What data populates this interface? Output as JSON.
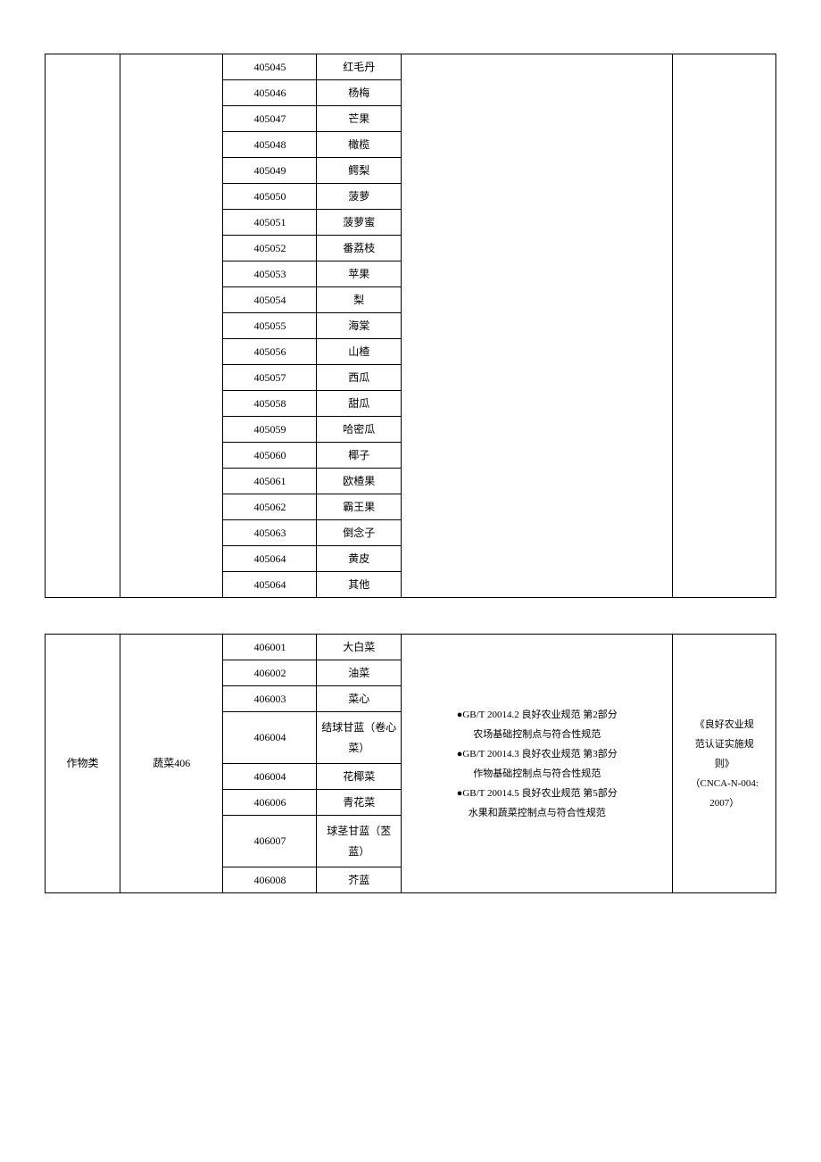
{
  "table1": {
    "rows": [
      {
        "code": "405045",
        "name": "红毛丹"
      },
      {
        "code": "405046",
        "name": "杨梅"
      },
      {
        "code": "405047",
        "name": "芒果"
      },
      {
        "code": "405048",
        "name": "橄榄"
      },
      {
        "code": "405049",
        "name": "鳄梨"
      },
      {
        "code": "405050",
        "name": "菠萝"
      },
      {
        "code": "405051",
        "name": "菠萝蜜"
      },
      {
        "code": "405052",
        "name": "番荔枝"
      },
      {
        "code": "405053",
        "name": "苹果"
      },
      {
        "code": "405054",
        "name": "梨"
      },
      {
        "code": "405055",
        "name": "海棠"
      },
      {
        "code": "405056",
        "name": "山楂"
      },
      {
        "code": "405057",
        "name": "西瓜"
      },
      {
        "code": "405058",
        "name": "甜瓜"
      },
      {
        "code": "405059",
        "name": "哈密瓜"
      },
      {
        "code": "405060",
        "name": "椰子"
      },
      {
        "code": "405061",
        "name": "欧楂果"
      },
      {
        "code": "405062",
        "name": "霸王果"
      },
      {
        "code": "405063",
        "name": "倒念子"
      },
      {
        "code": "405064",
        "name": "黄皮"
      },
      {
        "code": "405064",
        "name": "其他"
      }
    ]
  },
  "table2": {
    "col1": "作物类",
    "col2": "蔬菜406",
    "col5_lines": [
      "●GB/T 20014.2 良好农业规范 第2部分",
      "农场基础控制点与符合性规范",
      "●GB/T 20014.3 良好农业规范 第3部分",
      "作物基础控制点与符合性规范",
      "●GB/T 20014.5 良好农业规范 第5部分",
      "水果和蔬菜控制点与符合性规范"
    ],
    "col6_lines": [
      "《良好农业规",
      "范认证实施规",
      "则》",
      "（CNCA-N-004:",
      "2007）"
    ],
    "rows": [
      {
        "code": "406001",
        "name": "大白菜",
        "tall": false
      },
      {
        "code": "406002",
        "name": "油菜",
        "tall": false
      },
      {
        "code": "406003",
        "name": "菜心",
        "tall": false
      },
      {
        "code": "406004",
        "name": "结球甘蓝（卷心菜）",
        "tall": true
      },
      {
        "code": "406004",
        "name": "花椰菜",
        "tall": false
      },
      {
        "code": "406006",
        "name": "青花菜",
        "tall": false
      },
      {
        "code": "406007",
        "name": "球茎甘蓝（苤蓝）",
        "tall": true
      },
      {
        "code": "406008",
        "name": "芥蓝",
        "tall": false
      }
    ]
  }
}
